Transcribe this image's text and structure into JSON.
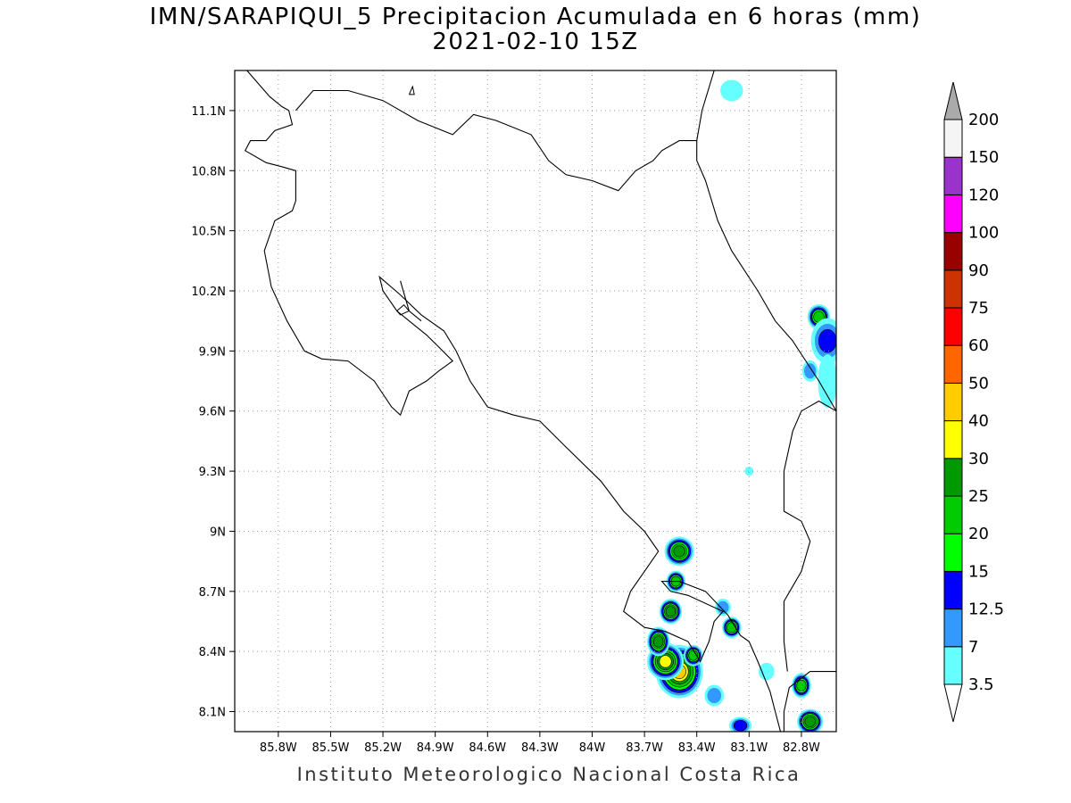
{
  "title": {
    "line1": "IMN/SARAPIQUI_5 Precipitacion Acumulada en 6 horas (mm)",
    "line2": "2021-02-10 15Z"
  },
  "footer": "Instituto Meteorologico Nacional Costa Rica",
  "map": {
    "lon_range": [
      -86.05,
      -82.6
    ],
    "lat_range": [
      8.0,
      11.3
    ],
    "x_ticks": [
      {
        "value": -85.8,
        "label": "85.8W"
      },
      {
        "value": -85.5,
        "label": "85.5W"
      },
      {
        "value": -85.2,
        "label": "85.2W"
      },
      {
        "value": -84.9,
        "label": "84.9W"
      },
      {
        "value": -84.6,
        "label": "84.6W"
      },
      {
        "value": -84.3,
        "label": "84.3W"
      },
      {
        "value": -84.0,
        "label": "84W"
      },
      {
        "value": -83.7,
        "label": "83.7W"
      },
      {
        "value": -83.4,
        "label": "83.4W"
      },
      {
        "value": -83.1,
        "label": "83.1W"
      },
      {
        "value": -82.8,
        "label": "82.8W"
      }
    ],
    "y_ticks": [
      {
        "value": 11.1,
        "label": "11.1N"
      },
      {
        "value": 10.8,
        "label": "10.8N"
      },
      {
        "value": 10.5,
        "label": "10.5N"
      },
      {
        "value": 10.2,
        "label": "10.2N"
      },
      {
        "value": 9.9,
        "label": "9.9N"
      },
      {
        "value": 9.6,
        "label": "9.6N"
      },
      {
        "value": 9.3,
        "label": "9.3N"
      },
      {
        "value": 9.0,
        "label": "9N"
      },
      {
        "value": 8.7,
        "label": "8.7N"
      },
      {
        "value": 8.4,
        "label": "8.4N"
      },
      {
        "value": 8.1,
        "label": "8.1N"
      }
    ],
    "grid": "dotted",
    "coast": [
      [
        [
          -85.98,
          11.3
        ],
        [
          -85.9,
          11.22
        ],
        [
          -85.85,
          11.17
        ],
        [
          -85.78,
          11.12
        ],
        [
          -85.74,
          11.1
        ],
        [
          -85.72,
          11.03
        ],
        [
          -85.82,
          11.0
        ],
        [
          -85.87,
          10.95
        ],
        [
          -85.96,
          10.95
        ],
        [
          -85.99,
          10.9
        ],
        [
          -85.87,
          10.84
        ],
        [
          -85.78,
          10.82
        ],
        [
          -85.7,
          10.8
        ],
        [
          -85.7,
          10.65
        ],
        [
          -85.72,
          10.6
        ],
        [
          -85.82,
          10.55
        ],
        [
          -85.88,
          10.4
        ],
        [
          -85.84,
          10.22
        ],
        [
          -85.75,
          10.05
        ],
        [
          -85.65,
          9.9
        ],
        [
          -85.55,
          9.86
        ],
        [
          -85.4,
          9.85
        ],
        [
          -85.25,
          9.75
        ],
        [
          -85.15,
          9.62
        ],
        [
          -85.1,
          9.58
        ],
        [
          -85.05,
          9.7
        ],
        [
          -84.95,
          9.75
        ],
        [
          -84.88,
          9.8
        ],
        [
          -84.8,
          9.85
        ],
        [
          -84.88,
          9.92
        ],
        [
          -84.95,
          9.98
        ],
        [
          -85.05,
          10.05
        ],
        [
          -85.12,
          10.1
        ],
        [
          -85.2,
          10.2
        ],
        [
          -85.22,
          10.27
        ],
        [
          -85.1,
          10.18
        ],
        [
          -84.98,
          10.08
        ],
        [
          -84.85,
          10.0
        ],
        [
          -84.78,
          9.9
        ],
        [
          -84.7,
          9.75
        ],
        [
          -84.6,
          9.62
        ],
        [
          -84.45,
          9.58
        ],
        [
          -84.3,
          9.55
        ],
        [
          -84.15,
          9.42
        ],
        [
          -83.95,
          9.25
        ],
        [
          -83.82,
          9.1
        ],
        [
          -83.7,
          9.0
        ],
        [
          -83.62,
          8.9
        ],
        [
          -83.7,
          8.8
        ],
        [
          -83.78,
          8.7
        ],
        [
          -83.82,
          8.6
        ],
        [
          -83.7,
          8.52
        ],
        [
          -83.58,
          8.5
        ],
        [
          -83.45,
          8.45
        ],
        [
          -83.38,
          8.35
        ],
        [
          -83.33,
          8.45
        ],
        [
          -83.3,
          8.55
        ],
        [
          -83.25,
          8.6
        ],
        [
          -83.45,
          8.68
        ],
        [
          -83.55,
          8.7
        ],
        [
          -83.6,
          8.75
        ],
        [
          -83.5,
          8.75
        ],
        [
          -83.35,
          8.7
        ],
        [
          -83.22,
          8.58
        ],
        [
          -83.15,
          8.48
        ],
        [
          -83.1,
          8.45
        ],
        [
          -83.05,
          8.35
        ],
        [
          -82.98,
          8.2
        ],
        [
          -82.95,
          8.1
        ],
        [
          -82.92,
          8.0
        ]
      ],
      [
        [
          -82.9,
          8.0
        ],
        [
          -82.9,
          8.1
        ],
        [
          -82.87,
          8.22
        ],
        [
          -82.75,
          8.3
        ],
        [
          -82.6,
          8.3
        ]
      ],
      [
        [
          -83.3,
          11.3
        ],
        [
          -83.37,
          11.1
        ],
        [
          -83.4,
          10.95
        ],
        [
          -83.4,
          10.85
        ],
        [
          -83.35,
          10.75
        ],
        [
          -83.28,
          10.55
        ],
        [
          -83.2,
          10.4
        ],
        [
          -83.05,
          10.2
        ],
        [
          -82.95,
          10.05
        ],
        [
          -82.85,
          9.95
        ],
        [
          -82.7,
          9.75
        ],
        [
          -82.6,
          9.6
        ]
      ],
      [
        [
          -82.6,
          9.6
        ],
        [
          -82.7,
          9.65
        ],
        [
          -82.8,
          9.6
        ],
        [
          -82.85,
          9.5
        ],
        [
          -82.9,
          9.3
        ],
        [
          -82.9,
          9.1
        ],
        [
          -82.8,
          9.05
        ],
        [
          -82.75,
          8.95
        ],
        [
          -82.8,
          8.8
        ],
        [
          -82.9,
          8.65
        ],
        [
          -82.9,
          8.45
        ],
        [
          -82.88,
          8.3
        ]
      ],
      [
        [
          -85.1,
          10.25
        ],
        [
          -85.05,
          10.1
        ],
        [
          -84.98,
          10.05
        ]
      ]
    ],
    "border": [
      [
        -85.7,
        11.1
      ],
      [
        -85.6,
        11.2
      ],
      [
        -85.4,
        11.2
      ],
      [
        -85.2,
        11.15
      ],
      [
        -85.0,
        11.05
      ],
      [
        -84.8,
        10.98
      ],
      [
        -84.68,
        11.08
      ],
      [
        -84.55,
        11.05
      ],
      [
        -84.35,
        10.98
      ],
      [
        -84.25,
        10.85
      ],
      [
        -84.15,
        10.78
      ],
      [
        -84.0,
        10.75
      ],
      [
        -83.85,
        10.7
      ],
      [
        -83.75,
        10.8
      ],
      [
        -83.65,
        10.85
      ],
      [
        -83.6,
        10.9
      ],
      [
        -83.5,
        10.95
      ],
      [
        -83.4,
        10.95
      ]
    ],
    "lake_island": [
      [
        -85.05,
        11.18
      ],
      [
        -85.03,
        11.22
      ],
      [
        -85.02,
        11.18
      ],
      [
        -85.05,
        11.18
      ]
    ],
    "nicoya_islet": [
      [
        -85.12,
        10.1
      ],
      [
        -85.08,
        10.13
      ],
      [
        -85.05,
        10.1
      ],
      [
        -85.1,
        10.08
      ],
      [
        -85.12,
        10.1
      ]
    ],
    "precip_cells": [
      {
        "lon": -83.5,
        "lat": 8.3,
        "rx": 0.12,
        "ry": 0.12,
        "level": 40
      },
      {
        "lon": -83.58,
        "lat": 8.35,
        "rx": 0.09,
        "ry": 0.08,
        "level": 30
      },
      {
        "lon": -83.62,
        "lat": 8.45,
        "rx": 0.05,
        "ry": 0.06,
        "level": 25
      },
      {
        "lon": -83.5,
        "lat": 8.9,
        "rx": 0.07,
        "ry": 0.06,
        "level": 25
      },
      {
        "lon": -83.52,
        "lat": 8.75,
        "rx": 0.04,
        "ry": 0.04,
        "level": 20
      },
      {
        "lon": -83.55,
        "lat": 8.6,
        "rx": 0.05,
        "ry": 0.05,
        "level": 25
      },
      {
        "lon": -83.2,
        "lat": 8.52,
        "rx": 0.04,
        "ry": 0.04,
        "level": 20
      },
      {
        "lon": -82.8,
        "lat": 8.23,
        "rx": 0.04,
        "ry": 0.05,
        "level": 20
      },
      {
        "lon": -82.75,
        "lat": 8.05,
        "rx": 0.06,
        "ry": 0.05,
        "level": 25
      },
      {
        "lon": -83.15,
        "lat": 8.03,
        "rx": 0.05,
        "ry": 0.03,
        "level": 12.5
      },
      {
        "lon": -82.7,
        "lat": 10.07,
        "rx": 0.05,
        "ry": 0.05,
        "level": 20
      },
      {
        "lon": -82.65,
        "lat": 9.95,
        "rx": 0.08,
        "ry": 0.1,
        "level": 12.5
      },
      {
        "lon": -82.75,
        "lat": 9.8,
        "rx": 0.03,
        "ry": 0.04,
        "level": 7
      },
      {
        "lon": -82.65,
        "lat": 9.75,
        "rx": 0.04,
        "ry": 0.12,
        "level": 3.5
      },
      {
        "lon": -83.42,
        "lat": 8.38,
        "rx": 0.04,
        "ry": 0.04,
        "level": 20
      },
      {
        "lon": -83.3,
        "lat": 8.18,
        "rx": 0.04,
        "ry": 0.04,
        "level": 7
      },
      {
        "lon": -83.25,
        "lat": 8.62,
        "rx": 0.03,
        "ry": 0.03,
        "level": 7
      },
      {
        "lon": -83.0,
        "lat": 8.3,
        "rx": 0.03,
        "ry": 0.03,
        "level": 3.5
      },
      {
        "lon": -83.2,
        "lat": 11.2,
        "rx": 0.05,
        "ry": 0.04,
        "level": 3.5
      },
      {
        "lon": -83.1,
        "lat": 9.3,
        "rx": 0.01,
        "ry": 0.01,
        "level": 3.5
      }
    ]
  },
  "colorbar": {
    "levels": [
      {
        "label": "3.5",
        "color": "#66ffff"
      },
      {
        "label": "7",
        "color": "#3399ff"
      },
      {
        "label": "12.5",
        "color": "#0000ff"
      },
      {
        "label": "15",
        "color": "#00ff00"
      },
      {
        "label": "20",
        "color": "#00cc00"
      },
      {
        "label": "25",
        "color": "#009900"
      },
      {
        "label": "30",
        "color": "#ffff00"
      },
      {
        "label": "40",
        "color": "#ffcc00"
      },
      {
        "label": "50",
        "color": "#ff6600"
      },
      {
        "label": "60",
        "color": "#ff0000"
      },
      {
        "label": "75",
        "color": "#cc3300"
      },
      {
        "label": "90",
        "color": "#990000"
      },
      {
        "label": "100",
        "color": "#ff00ff"
      },
      {
        "label": "120",
        "color": "#9933cc"
      },
      {
        "label": "150",
        "color": "#f5f5f5"
      },
      {
        "label": "200",
        "color": "#aaaaaa"
      }
    ]
  }
}
